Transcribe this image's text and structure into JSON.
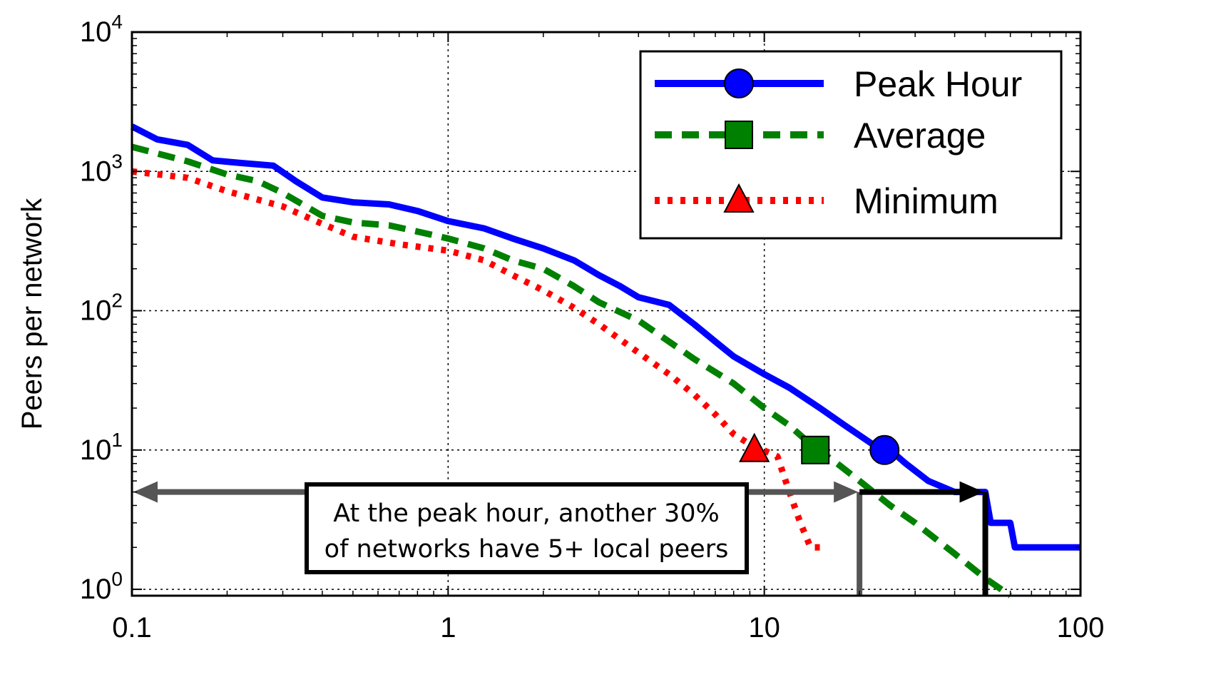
{
  "chart_data": {
    "type": "line",
    "xscale": "log",
    "yscale": "log",
    "xlim": [
      0.1,
      100
    ],
    "ylim": [
      0.9,
      10000
    ],
    "xlabel": "",
    "ylabel": "Peers per network",
    "grid": true,
    "legend_position": "top-right",
    "x_ticks": [
      {
        "value": 0.1,
        "label": "0.1"
      },
      {
        "value": 1,
        "label": "1"
      },
      {
        "value": 10,
        "label": "10"
      },
      {
        "value": 100,
        "label": "100"
      }
    ],
    "y_ticks": [
      {
        "value": 1,
        "base": "10",
        "exp": "0"
      },
      {
        "value": 10,
        "base": "10",
        "exp": "1"
      },
      {
        "value": 100,
        "base": "10",
        "exp": "2"
      },
      {
        "value": 1000,
        "base": "10",
        "exp": "3"
      },
      {
        "value": 10000,
        "base": "10",
        "exp": "4"
      }
    ],
    "series": [
      {
        "name": "Peak Hour",
        "color": "#0000ff",
        "style": "solid",
        "marker": "circle",
        "marker_at": [
          24,
          10
        ],
        "points": [
          [
            0.1,
            2100
          ],
          [
            0.12,
            1700
          ],
          [
            0.15,
            1550
          ],
          [
            0.18,
            1200
          ],
          [
            0.22,
            1150
          ],
          [
            0.28,
            1100
          ],
          [
            0.33,
            850
          ],
          [
            0.4,
            650
          ],
          [
            0.5,
            600
          ],
          [
            0.65,
            580
          ],
          [
            0.8,
            520
          ],
          [
            1.0,
            440
          ],
          [
            1.3,
            390
          ],
          [
            1.6,
            330
          ],
          [
            2.0,
            280
          ],
          [
            2.5,
            230
          ],
          [
            3.0,
            180
          ],
          [
            3.5,
            150
          ],
          [
            4.0,
            125
          ],
          [
            5.0,
            110
          ],
          [
            6.0,
            80
          ],
          [
            7.0,
            60
          ],
          [
            8.0,
            47
          ],
          [
            10,
            35
          ],
          [
            12,
            28
          ],
          [
            15,
            20
          ],
          [
            18,
            15
          ],
          [
            22,
            11
          ],
          [
            25,
            10
          ],
          [
            28,
            8
          ],
          [
            33,
            6
          ],
          [
            40,
            5
          ],
          [
            45,
            5
          ],
          [
            50,
            5
          ],
          [
            52,
            3
          ],
          [
            60,
            3
          ],
          [
            62,
            2
          ],
          [
            100,
            2
          ]
        ]
      },
      {
        "name": "Average",
        "color": "#008000",
        "style": "dashed",
        "marker": "square",
        "marker_at": [
          14.5,
          10
        ],
        "points": [
          [
            0.1,
            1500
          ],
          [
            0.15,
            1180
          ],
          [
            0.2,
            950
          ],
          [
            0.25,
            850
          ],
          [
            0.3,
            700
          ],
          [
            0.4,
            480
          ],
          [
            0.5,
            430
          ],
          [
            0.65,
            410
          ],
          [
            0.8,
            370
          ],
          [
            1.0,
            330
          ],
          [
            1.3,
            280
          ],
          [
            1.6,
            230
          ],
          [
            2.0,
            200
          ],
          [
            2.5,
            150
          ],
          [
            3.0,
            115
          ],
          [
            4.0,
            85
          ],
          [
            5.0,
            60
          ],
          [
            6.0,
            45
          ],
          [
            8.0,
            30
          ],
          [
            10,
            20
          ],
          [
            12,
            15
          ],
          [
            14,
            11
          ],
          [
            17,
            8
          ],
          [
            20,
            6
          ],
          [
            25,
            4
          ],
          [
            30,
            3
          ],
          [
            40,
            1.8
          ],
          [
            50,
            1.2
          ],
          [
            60,
            0.9
          ]
        ]
      },
      {
        "name": "Minimum",
        "color": "#ff0000",
        "style": "dotted",
        "marker": "triangle",
        "marker_at": [
          9.3,
          10
        ],
        "points": [
          [
            0.1,
            1000
          ],
          [
            0.15,
            900
          ],
          [
            0.2,
            720
          ],
          [
            0.3,
            560
          ],
          [
            0.4,
            420
          ],
          [
            0.5,
            340
          ],
          [
            0.7,
            300
          ],
          [
            1.0,
            270
          ],
          [
            1.3,
            230
          ],
          [
            1.6,
            180
          ],
          [
            2.0,
            140
          ],
          [
            2.5,
            105
          ],
          [
            3.0,
            80
          ],
          [
            4.0,
            50
          ],
          [
            5.0,
            35
          ],
          [
            6.0,
            25
          ],
          [
            7.0,
            18
          ],
          [
            8.0,
            13
          ],
          [
            9.0,
            11
          ],
          [
            11,
            9
          ],
          [
            12,
            5
          ],
          [
            13,
            3
          ],
          [
            14,
            2
          ],
          [
            15,
            2
          ]
        ]
      }
    ],
    "annotation": {
      "lines": [
        "At the peak hour, another 30%",
        "of networks have 5+ local peers"
      ],
      "arrow_y": 5,
      "gray_arrow_from_x": 0.1,
      "gray_arrow_to_x": 20,
      "black_arrow_from_x": 20,
      "black_arrow_to_x": 50
    }
  }
}
